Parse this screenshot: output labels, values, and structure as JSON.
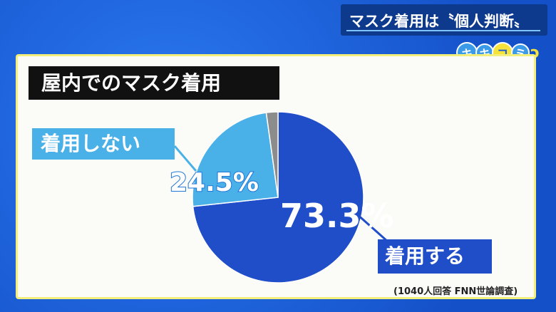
{
  "header": {
    "title": "マスク着用は〝個人判断〟"
  },
  "logo": {
    "chars": [
      "キ",
      "キ",
      "コ",
      "ミ"
    ],
    "icon": "ear-icon"
  },
  "chart_data": {
    "type": "pie",
    "title": "屋内でのマスク着用",
    "slices": [
      {
        "label": "着用する",
        "value": 73.3,
        "display": "73.3%",
        "color": "#1f4ec8"
      },
      {
        "label": "着用しない",
        "value": 24.5,
        "display": "24.5%",
        "color": "#4ab0e8"
      },
      {
        "label": "",
        "value": 2.2,
        "color": "#8c8c8c"
      }
    ],
    "start": "top",
    "direction": "clockwise"
  },
  "source": "(1040人回答 FNN世論調査)"
}
